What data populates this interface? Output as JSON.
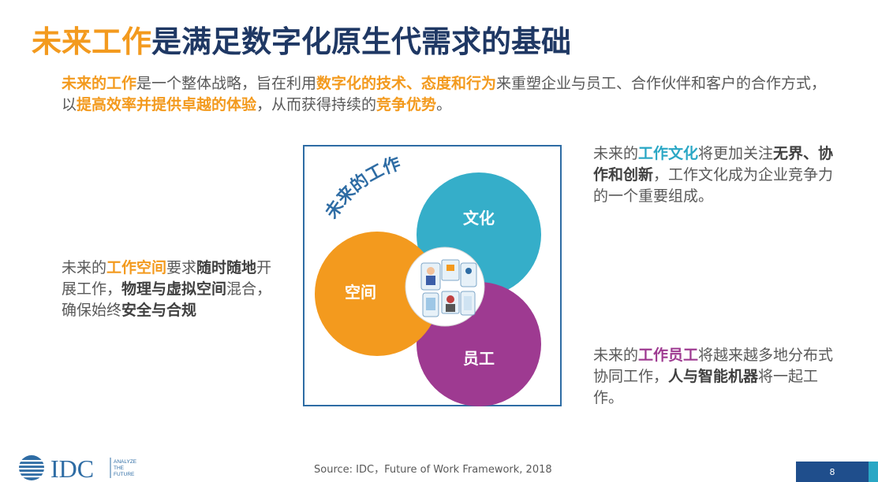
{
  "title": {
    "highlight": "未来工作",
    "rest": "是满足数字化原生代需求的基础"
  },
  "intro": {
    "t1": "未来的工作",
    "t2": "是一个整体战略，旨在利用",
    "t3": "数字化的技术、态度和行为",
    "t4": "来重塑企业与员工、合作伙伴和客户的合作方式，以",
    "t5": "提高效率并提供卓越的体验",
    "t6": "，从而获得持续的",
    "t7": "竞争优势",
    "t8": "。"
  },
  "diagram": {
    "arc_label": "未来的工作",
    "circle_culture": "文化",
    "circle_space": "空间",
    "circle_staff": "员工",
    "colors": {
      "culture": "#35aec9",
      "space": "#f39a1e",
      "staff": "#9e3a91",
      "frame": "#2e6ca4"
    }
  },
  "left_text": {
    "t1": "未来的",
    "t2": "工作空间",
    "t3": "要求",
    "t4": "随时随地",
    "t5": "开展工作，",
    "t6": "物理与虚拟空间",
    "t7": "混合，确保始终",
    "t8": "安全与合规"
  },
  "right_top_text": {
    "t1": "未来的",
    "t2": "工作文化",
    "t3": "将更加关注",
    "t4": "无界、协作和创新",
    "t5": "，工作文化成为企业竞争力的一个重要组成。"
  },
  "right_bottom_text": {
    "t1": "未来的",
    "t2": "工作员工",
    "t3": "将越来越多地分布式协同工作，",
    "t4": "人与智能机器",
    "t5": "将一起工作。"
  },
  "footer": {
    "source": "Source: IDC，Future of Work Framework, 2018",
    "logo_text": "IDC",
    "tagline": [
      "ANALYZE",
      "THE",
      "FUTURE"
    ],
    "page_number": "8"
  }
}
